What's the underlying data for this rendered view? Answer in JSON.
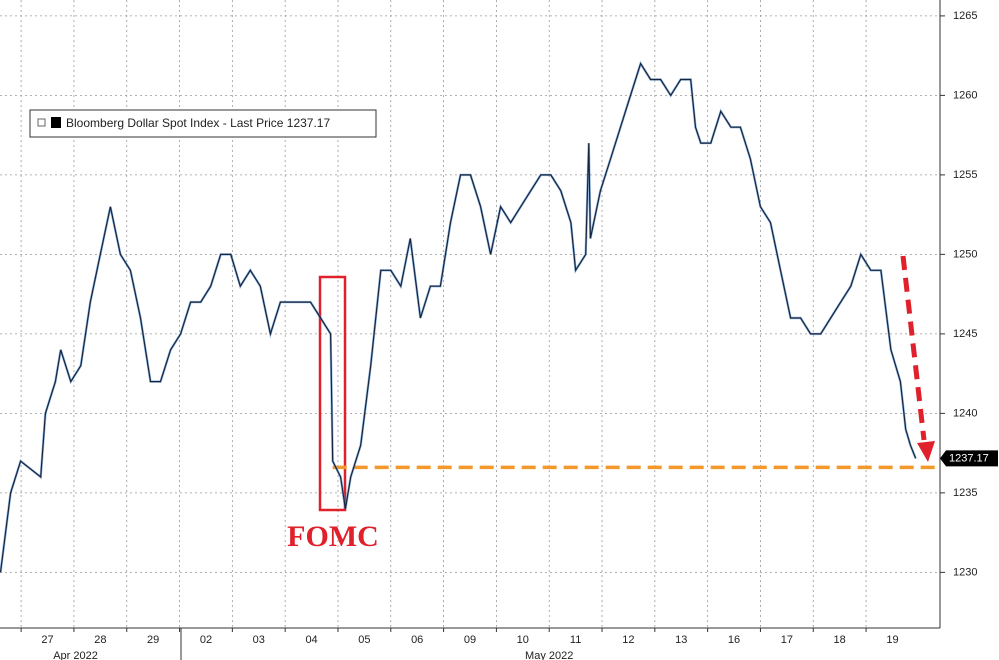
{
  "chart_data": {
    "type": "line",
    "series": [
      {
        "name": "Bloomberg Dollar Spot Index - Last Price 1237.17",
        "color": "#15243f",
        "x": [
          -0.39,
          -0.2,
          -0.01,
          0.37,
          0.46,
          0.65,
          0.75,
          0.94,
          1.13,
          1.31,
          1.5,
          1.69,
          1.88,
          2.07,
          2.26,
          2.45,
          2.64,
          2.83,
          3.02,
          3.21,
          3.4,
          3.59,
          3.78,
          3.97,
          4.15,
          4.34,
          4.53,
          4.72,
          4.91,
          5.1,
          5.29,
          5.48,
          5.67,
          5.86,
          5.9,
          6.05,
          6.14,
          6.24,
          6.43,
          6.62,
          6.81,
          7.0,
          7.19,
          7.37,
          7.56,
          7.75,
          7.94,
          8.13,
          8.32,
          8.51,
          8.7,
          8.89,
          9.08,
          9.27,
          9.46,
          9.65,
          9.84,
          10.03,
          10.22,
          10.41,
          10.5,
          10.69,
          10.75,
          10.78,
          10.97,
          11.16,
          11.35,
          11.54,
          11.73,
          11.92,
          12.11,
          12.3,
          12.49,
          12.68,
          12.77,
          12.87,
          13.06,
          13.25,
          13.44,
          13.62,
          13.81,
          14.0,
          14.19,
          14.38,
          14.57,
          14.76,
          14.95,
          15.14,
          15.33,
          15.52,
          15.71,
          15.9,
          16.09,
          16.28,
          16.47,
          16.65,
          16.75,
          16.84,
          16.94
        ],
        "values": [
          1230,
          1235,
          1237,
          1236,
          1240,
          1242,
          1244,
          1242,
          1243,
          1247,
          1250,
          1253,
          1250,
          1249,
          1246,
          1242,
          1242,
          1244,
          1245,
          1247,
          1247,
          1248,
          1250,
          1250,
          1248,
          1249,
          1248,
          1245,
          1247,
          1247,
          1247,
          1247,
          1246,
          1245,
          1237,
          1236,
          1234,
          1236,
          1238,
          1243,
          1249,
          1249,
          1248,
          1251,
          1246,
          1248,
          1248,
          1252,
          1255,
          1255,
          1253,
          1250,
          1253,
          1252,
          1253,
          1254,
          1255,
          1255,
          1254,
          1252,
          1249,
          1250,
          1257,
          1251,
          1254,
          1256,
          1258,
          1260,
          1262,
          1261,
          1261,
          1260,
          1261,
          1261,
          1258,
          1257,
          1257,
          1259,
          1258,
          1258,
          1256,
          1253,
          1252,
          1249,
          1246,
          1246,
          1245,
          1245,
          1246,
          1247,
          1248,
          1250,
          1249,
          1249,
          1244,
          1242,
          1239,
          1238,
          1237.17
        ]
      }
    ],
    "last_label": "1237.17",
    "annotation": "FOMC",
    "hline": 1236.6,
    "xlim": [
      -0.4,
      17.4
    ],
    "xticks": [
      {
        "value": 0.5,
        "label": "27"
      },
      {
        "value": 1.5,
        "label": "28"
      },
      {
        "value": 2.5,
        "label": "29"
      },
      {
        "value": 3.5,
        "label": "02"
      },
      {
        "value": 4.5,
        "label": "03"
      },
      {
        "value": 5.5,
        "label": "04"
      },
      {
        "value": 6.5,
        "label": "05"
      },
      {
        "value": 7.5,
        "label": "06"
      },
      {
        "value": 8.5,
        "label": "09"
      },
      {
        "value": 9.5,
        "label": "10"
      },
      {
        "value": 10.5,
        "label": "11"
      },
      {
        "value": 11.5,
        "label": "12"
      },
      {
        "value": 12.5,
        "label": "13"
      },
      {
        "value": 13.5,
        "label": "16"
      },
      {
        "value": 14.5,
        "label": "17"
      },
      {
        "value": 15.5,
        "label": "18"
      },
      {
        "value": 16.5,
        "label": "19"
      }
    ],
    "x2ticks": [
      {
        "value": 1.03,
        "label": "Apr 2022"
      },
      {
        "value": 10,
        "label": "May 2022"
      }
    ],
    "ylim": [
      1226.5,
      1266
    ],
    "yticks": [
      1230,
      1235,
      1240,
      1245,
      1250,
      1255,
      1260,
      1265
    ],
    "grid": true
  }
}
